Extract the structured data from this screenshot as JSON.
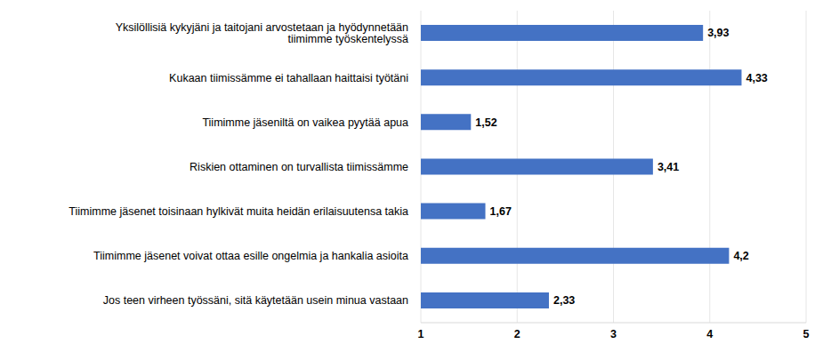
{
  "chart_data": {
    "type": "bar",
    "orientation": "horizontal",
    "categories": [
      "Yksilöllisiä kykyjäni ja taitojani arvostetaan ja hyödynnetään tiimimme työskentelyssä",
      "Kukaan tiimissämme ei tahallaan haittaisi työtäni",
      "Tiimimme jäseniltä on vaikea pyytää apua",
      "Riskien ottaminen on turvallista tiimissämme",
      "Tiimimme jäsenet toisinaan hylkivät muita heidän erilaisuutensa takia",
      "Tiimimme jäsenet voivat ottaa esille ongelmia ja hankalia asioita",
      "Jos teen virheen työssäni, sitä käytetään usein minua vastaan"
    ],
    "values": [
      3.93,
      4.33,
      1.52,
      3.41,
      1.67,
      4.2,
      2.33
    ],
    "value_labels": [
      "3,93",
      "4,33",
      "1,52",
      "3,41",
      "1,67",
      "4,2",
      "2,33"
    ],
    "color": "#4472c4",
    "xlim": [
      1,
      5
    ],
    "xticks": [
      1,
      2,
      3,
      4,
      5
    ],
    "grid": true,
    "data_labels": true
  }
}
